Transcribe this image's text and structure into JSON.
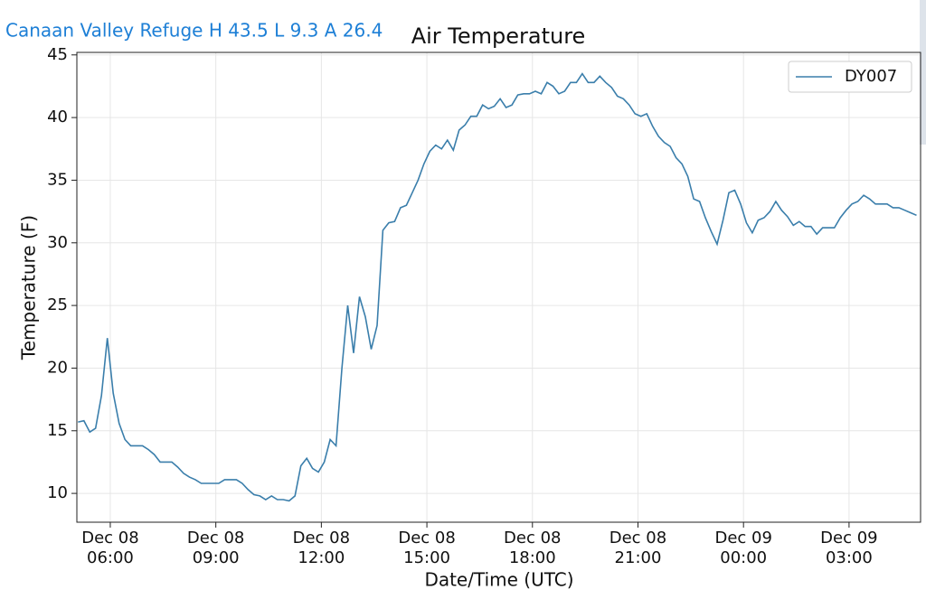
{
  "header": "Canaan Valley Refuge H 43.5 L 9.3 A 26.4",
  "chart_data": {
    "type": "line",
    "title": "Air Temperature",
    "x_label": "Date/Time (UTC)",
    "y_label": "Temperature (F)",
    "x": [
      "Dec 08 05:05",
      "Dec 08 05:15",
      "Dec 08 05:25",
      "Dec 08 05:35",
      "Dec 08 05:45",
      "Dec 08 05:55",
      "Dec 08 06:05",
      "Dec 08 06:15",
      "Dec 08 06:25",
      "Dec 08 06:35",
      "Dec 08 06:45",
      "Dec 08 06:55",
      "Dec 08 07:05",
      "Dec 08 07:15",
      "Dec 08 07:25",
      "Dec 08 07:35",
      "Dec 08 07:45",
      "Dec 08 07:55",
      "Dec 08 08:05",
      "Dec 08 08:15",
      "Dec 08 08:25",
      "Dec 08 08:35",
      "Dec 08 08:45",
      "Dec 08 08:55",
      "Dec 08 09:05",
      "Dec 08 09:15",
      "Dec 08 09:25",
      "Dec 08 09:35",
      "Dec 08 09:45",
      "Dec 08 09:55",
      "Dec 08 10:05",
      "Dec 08 10:15",
      "Dec 08 10:25",
      "Dec 08 10:35",
      "Dec 08 10:45",
      "Dec 08 10:55",
      "Dec 08 11:05",
      "Dec 08 11:15",
      "Dec 08 11:25",
      "Dec 08 11:35",
      "Dec 08 11:45",
      "Dec 08 11:55",
      "Dec 08 12:05",
      "Dec 08 12:15",
      "Dec 08 12:25",
      "Dec 08 12:35",
      "Dec 08 12:45",
      "Dec 08 12:55",
      "Dec 08 13:05",
      "Dec 08 13:15",
      "Dec 08 13:25",
      "Dec 08 13:35",
      "Dec 08 13:45",
      "Dec 08 13:55",
      "Dec 08 14:05",
      "Dec 08 14:15",
      "Dec 08 14:25",
      "Dec 08 14:35",
      "Dec 08 14:45",
      "Dec 08 14:55",
      "Dec 08 15:05",
      "Dec 08 15:15",
      "Dec 08 15:25",
      "Dec 08 15:35",
      "Dec 08 15:45",
      "Dec 08 15:55",
      "Dec 08 16:05",
      "Dec 08 16:15",
      "Dec 08 16:25",
      "Dec 08 16:35",
      "Dec 08 16:45",
      "Dec 08 16:55",
      "Dec 08 17:05",
      "Dec 08 17:15",
      "Dec 08 17:25",
      "Dec 08 17:35",
      "Dec 08 17:45",
      "Dec 08 17:55",
      "Dec 08 18:05",
      "Dec 08 18:15",
      "Dec 08 18:25",
      "Dec 08 18:35",
      "Dec 08 18:45",
      "Dec 08 18:55",
      "Dec 08 19:05",
      "Dec 08 19:15",
      "Dec 08 19:25",
      "Dec 08 19:35",
      "Dec 08 19:45",
      "Dec 08 19:55",
      "Dec 08 20:05",
      "Dec 08 20:15",
      "Dec 08 20:25",
      "Dec 08 20:35",
      "Dec 08 20:45",
      "Dec 08 20:55",
      "Dec 08 21:05",
      "Dec 08 21:15",
      "Dec 08 21:25",
      "Dec 08 21:35",
      "Dec 08 21:45",
      "Dec 08 21:55",
      "Dec 08 22:05",
      "Dec 08 22:15",
      "Dec 08 22:25",
      "Dec 08 22:35",
      "Dec 08 22:45",
      "Dec 08 22:55",
      "Dec 08 23:05",
      "Dec 08 23:15",
      "Dec 08 23:25",
      "Dec 08 23:35",
      "Dec 08 23:45",
      "Dec 08 23:55",
      "Dec 09 00:05",
      "Dec 09 00:15",
      "Dec 09 00:25",
      "Dec 09 00:35",
      "Dec 09 00:45",
      "Dec 09 00:55",
      "Dec 09 01:05",
      "Dec 09 01:15",
      "Dec 09 01:25",
      "Dec 09 01:35",
      "Dec 09 01:45",
      "Dec 09 01:55",
      "Dec 09 02:05",
      "Dec 09 02:15",
      "Dec 09 02:25",
      "Dec 09 02:35",
      "Dec 09 02:45",
      "Dec 09 02:55",
      "Dec 09 03:05",
      "Dec 09 03:15",
      "Dec 09 03:25",
      "Dec 09 03:35",
      "Dec 09 03:45",
      "Dec 09 03:55",
      "Dec 09 04:05",
      "Dec 09 04:15",
      "Dec 09 04:25",
      "Dec 09 04:35",
      "Dec 09 04:45",
      "Dec 09 04:55"
    ],
    "series": [
      {
        "name": "DY007",
        "color": "#3a7eab",
        "values": [
          15.7,
          15.8,
          14.9,
          15.2,
          17.8,
          22.4,
          18.0,
          15.6,
          14.3,
          13.8,
          13.8,
          13.8,
          13.5,
          13.1,
          12.5,
          12.5,
          12.5,
          12.1,
          11.6,
          11.3,
          11.1,
          10.8,
          10.8,
          10.8,
          10.8,
          11.1,
          11.1,
          11.1,
          10.8,
          10.3,
          9.9,
          9.8,
          9.5,
          9.8,
          9.5,
          9.5,
          9.4,
          9.8,
          12.2,
          12.8,
          12.0,
          11.7,
          12.5,
          14.3,
          13.8,
          20.0,
          25.0,
          21.2,
          25.7,
          24.1,
          21.5,
          23.4,
          31.0,
          31.6,
          31.7,
          32.8,
          33.0,
          34.0,
          35.0,
          36.3,
          37.3,
          37.8,
          37.5,
          38.2,
          37.4,
          39.0,
          39.4,
          40.1,
          40.1,
          41.0,
          40.7,
          40.9,
          41.5,
          40.8,
          41.0,
          41.8,
          41.9,
          41.9,
          42.1,
          41.9,
          42.8,
          42.5,
          41.9,
          42.1,
          42.8,
          42.8,
          43.5,
          42.8,
          42.8,
          43.3,
          42.8,
          42.4,
          41.7,
          41.5,
          41.0,
          40.3,
          40.1,
          40.3,
          39.3,
          38.5,
          38.0,
          37.7,
          36.8,
          36.3,
          35.3,
          33.5,
          33.3,
          32.0,
          30.9,
          29.9,
          31.8,
          34.0,
          34.2,
          33.1,
          31.6,
          30.8,
          31.8,
          32.0,
          32.5,
          33.3,
          32.6,
          32.1,
          31.4,
          31.7,
          31.3,
          31.3,
          30.7,
          31.2,
          31.2,
          31.2,
          32.0,
          32.6,
          33.1,
          33.3,
          33.8,
          33.5,
          33.1,
          33.1,
          33.1,
          32.8,
          32.8,
          32.6,
          32.4,
          32.2
        ]
      }
    ],
    "xlim": [
      "Dec 08 05:03",
      "Dec 09 05:02"
    ],
    "xticks": [
      "Dec 08 06:00",
      "Dec 08 09:00",
      "Dec 08 12:00",
      "Dec 08 15:00",
      "Dec 08 18:00",
      "Dec 08 21:00",
      "Dec 09 00:00",
      "Dec 09 03:00"
    ],
    "ylim": [
      7.7,
      45.2
    ],
    "yticks": [
      10,
      15,
      20,
      25,
      30,
      35,
      40,
      45
    ],
    "grid": true,
    "legend": "upper right"
  }
}
